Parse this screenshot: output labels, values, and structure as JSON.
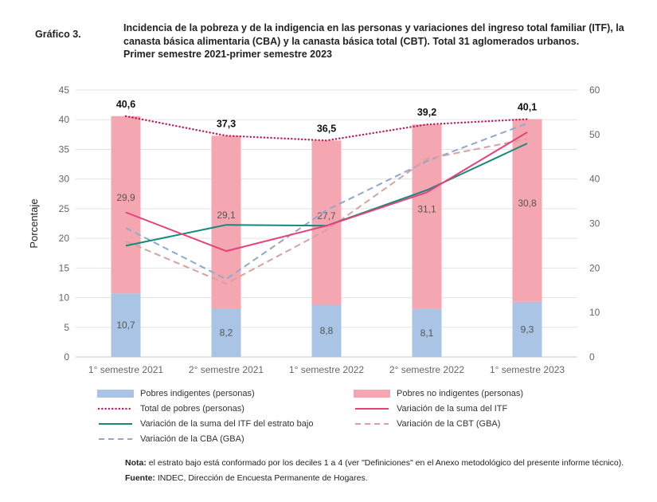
{
  "header": {
    "label": "Gráfico 3.",
    "title_lines": [
      "Incidencia de la pobreza y de la indigencia en las personas y variaciones del ingreso total familiar (ITF), la",
      "canasta básica alimentaria (CBA) y la canasta básica total (CBT). Total 31 aglomerados urbanos.",
      "Primer semestre 2021-primer semestre 2023"
    ]
  },
  "chart_data": {
    "type": "bar",
    "stacked": true,
    "categories": [
      "1° semestre 2021",
      "2° semestre 2021",
      "1° semestre 2022",
      "2° semestre 2022",
      "1° semestre 2023"
    ],
    "ylabel": "Porcentaje",
    "ylim": [
      0,
      45
    ],
    "yticks": [
      0,
      5,
      10,
      15,
      20,
      25,
      30,
      35,
      40,
      45
    ],
    "y2lim": [
      0,
      60
    ],
    "y2ticks": [
      0,
      10,
      20,
      30,
      40,
      50,
      60
    ],
    "grid": true,
    "bars": [
      {
        "name": "Pobres indigentes (personas)",
        "color": "#a9c4e4",
        "values": [
          10.7,
          8.2,
          8.8,
          8.1,
          9.3
        ],
        "labels": [
          "10,7",
          "8,2",
          "8,8",
          "8,1",
          "9,3"
        ]
      },
      {
        "name": "Pobres no indigentes (personas)",
        "color": "#f4a7b0",
        "values": [
          29.9,
          29.1,
          27.7,
          31.1,
          30.8
        ],
        "labels": [
          "29,9",
          "29,1",
          "27,7",
          "31,1",
          "30,8"
        ]
      }
    ],
    "lines": [
      {
        "name": "Total de pobres (personas)",
        "color": "#c0185f",
        "style": "dotted",
        "axis": "left",
        "values": [
          40.6,
          37.3,
          36.5,
          39.2,
          40.1
        ],
        "labels": [
          "40,6",
          "37,3",
          "36,5",
          "39,2",
          "40,1"
        ]
      },
      {
        "name": "Variación de la suma del ITF",
        "color": "#e8417a",
        "style": "solid",
        "axis": "right",
        "values": [
          32.5,
          23.8,
          29.5,
          37.0,
          50.5
        ]
      },
      {
        "name": "Variación de la suma del ITF del estrato bajo",
        "color": "#138a7c",
        "style": "solid",
        "axis": "right",
        "values": [
          25.0,
          29.7,
          29.5,
          37.5,
          48.0
        ]
      },
      {
        "name": "Variación de la CBT (GBA)",
        "color": "#d9a1a1",
        "style": "dashed",
        "axis": "right",
        "values": [
          26.0,
          16.5,
          28.5,
          44.5,
          49.0
        ]
      },
      {
        "name": "Variación de la CBA (GBA)",
        "color": "#8ea9cc",
        "style": "dashed",
        "axis": "right",
        "values": [
          29.0,
          17.5,
          33.0,
          44.0,
          52.5
        ]
      }
    ],
    "legend_placement": "bottom"
  },
  "notes": {
    "nota_label": "Nota:",
    "nota_text": "el estrato bajo está conformado por los deciles 1 a 4 (ver \"Definiciones\" en el Anexo metodológico del presente informe técnico).",
    "fuente_label": "Fuente:",
    "fuente_text": "INDEC, Dirección de Encuesta Permanente de Hogares."
  }
}
